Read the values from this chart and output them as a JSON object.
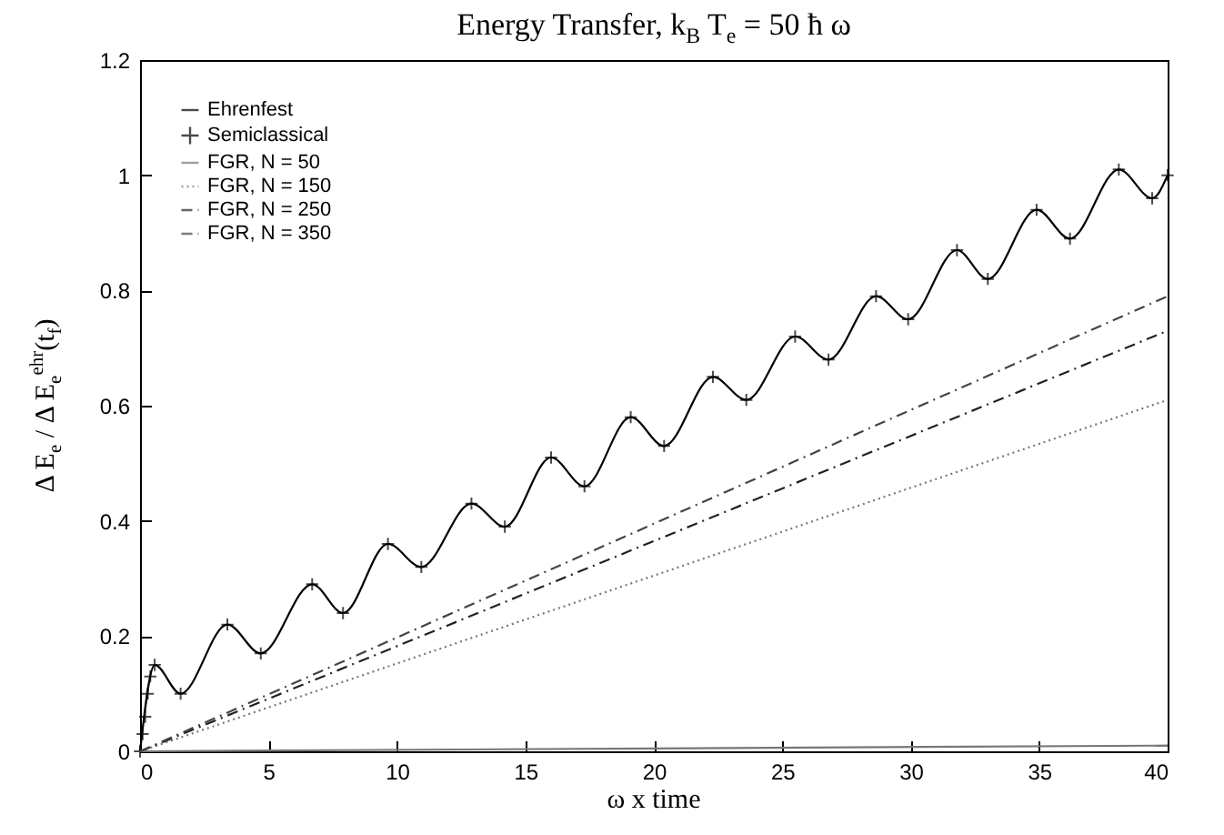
{
  "chart_data": {
    "type": "line",
    "title": "Energy Transfer, k$_{B}$ T$_{e}$ = 50 ħ ω",
    "xlabel": "ω x time",
    "ylabel": "Δ E$_{e}$ / Δ E$_{e}$$^{ehr}$(t$_{f}$)",
    "xlim": [
      0,
      40
    ],
    "xticks": [
      0,
      5,
      10,
      15,
      20,
      25,
      30,
      35,
      40
    ],
    "ylim": [
      0,
      1.2
    ],
    "yticks": [
      0,
      0.2,
      0.4,
      0.6,
      0.8,
      1,
      1.2
    ],
    "grid": false,
    "legend": "top left",
    "series": [
      {
        "name": "Ehrenfest",
        "line_style": "solid",
        "color": "#000000",
        "x": [
          0,
          0.57,
          1.58,
          3.4,
          4.7,
          6.7,
          7.9,
          9.65,
          10.95,
          12.9,
          14.2,
          16.0,
          17.3,
          19.1,
          20.4,
          22.3,
          23.6,
          25.5,
          26.8,
          28.65,
          29.9,
          31.8,
          33.0,
          34.9,
          36.2,
          38.1,
          39.4,
          40
        ],
        "values": [
          0,
          0.15,
          0.1,
          0.22,
          0.17,
          0.29,
          0.24,
          0.36,
          0.32,
          0.43,
          0.39,
          0.51,
          0.46,
          0.58,
          0.53,
          0.65,
          0.61,
          0.72,
          0.68,
          0.79,
          0.75,
          0.87,
          0.82,
          0.94,
          0.89,
          1.01,
          0.96,
          1.0
        ]
      },
      {
        "name": "Semiclassical",
        "type": "scatter",
        "marker": "cross",
        "color": "#000000",
        "x": [
          0,
          0.1,
          0.2,
          0.3,
          0.4,
          0.57,
          1.58,
          3.4,
          4.7,
          6.7,
          7.9,
          9.65,
          10.95,
          12.9,
          14.2,
          16.0,
          17.3,
          19.1,
          20.4,
          22.3,
          23.6,
          25.5,
          26.8,
          28.65,
          29.9,
          31.8,
          33.0,
          34.9,
          36.2,
          38.1,
          39.4,
          40
        ],
        "values": [
          0,
          0.03,
          0.06,
          0.1,
          0.13,
          0.15,
          0.1,
          0.22,
          0.17,
          0.29,
          0.24,
          0.36,
          0.32,
          0.43,
          0.39,
          0.51,
          0.46,
          0.58,
          0.53,
          0.65,
          0.61,
          0.72,
          0.68,
          0.79,
          0.75,
          0.87,
          0.82,
          0.94,
          0.89,
          1.01,
          0.96,
          1.0
        ]
      },
      {
        "name": "FGR, N = 50",
        "line_style": "solid",
        "color": "#777777",
        "x": [
          0,
          40
        ],
        "values": [
          0,
          0.01
        ]
      },
      {
        "name": "FGR, N = 150",
        "line_style": "dotted",
        "color": "#777777",
        "x": [
          0,
          40
        ],
        "values": [
          0,
          0.61
        ]
      },
      {
        "name": "FGR, N = 250",
        "line_style": "dashed",
        "color": "#222222",
        "x": [
          0,
          40
        ],
        "values": [
          0,
          0.73
        ]
      },
      {
        "name": "FGR, N = 350",
        "line_style": "dashed",
        "color": "#444444",
        "x": [
          0,
          40
        ],
        "values": [
          0,
          0.79
        ]
      }
    ]
  }
}
